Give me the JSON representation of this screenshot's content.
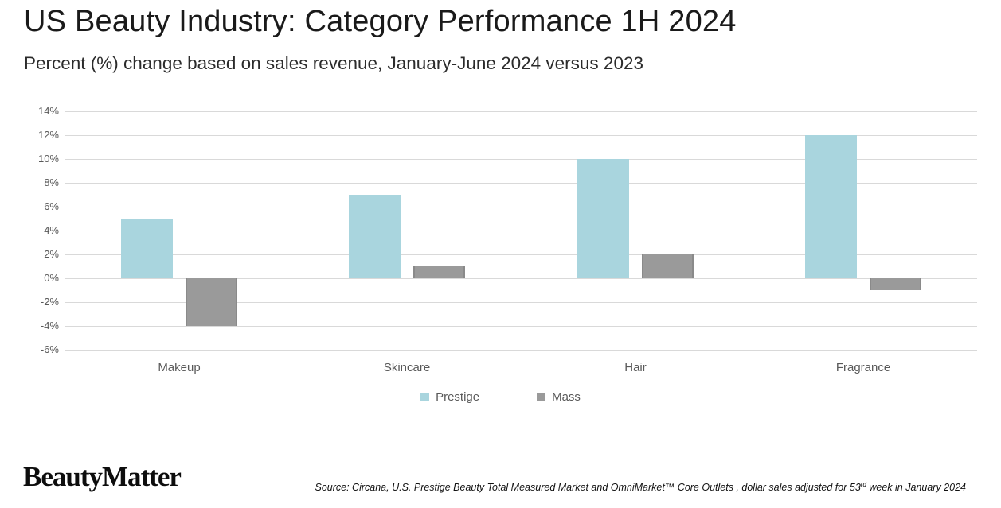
{
  "header": {
    "title": "US Beauty Industry: Category Performance 1H 2024",
    "subtitle": "Percent (%) change based on sales revenue, January-June 2024 versus 2023"
  },
  "chart_data": {
    "type": "bar",
    "categories": [
      "Makeup",
      "Skincare",
      "Hair",
      "Fragrance"
    ],
    "series": [
      {
        "name": "Prestige",
        "color": "#a9d5de",
        "values": [
          5,
          7,
          10,
          12
        ]
      },
      {
        "name": "Mass",
        "color": "#9a9a9a",
        "edge_color": "#8a8a8a",
        "values": [
          -4,
          1,
          2,
          -1
        ]
      }
    ],
    "title": "US Beauty Industry: Category Performance 1H 2024",
    "subtitle": "Percent (%) change based on sales revenue, January-June 2024 versus 2023",
    "xlabel": "",
    "ylabel": "",
    "ylim": [
      -6,
      14
    ],
    "ytick_step": 2,
    "ytick_suffix": "%",
    "grid": true,
    "legend_position": "bottom"
  },
  "colors": {
    "grid": "#d9d9d9",
    "axis_text": "#595959",
    "title_text": "#1a1a1a",
    "subtitle_text": "#2b2b2b",
    "source_text": "#111111",
    "background": "#ffffff"
  },
  "footer": {
    "logo": "BeautyMatter",
    "source_prefix": "Source: Circana, U.S. Prestige Beauty Total Measured Market and OmniMarket™ Core Outlets , dollar sales adjusted for 53",
    "source_sup": "rd",
    "source_suffix": " week in January 2024"
  }
}
